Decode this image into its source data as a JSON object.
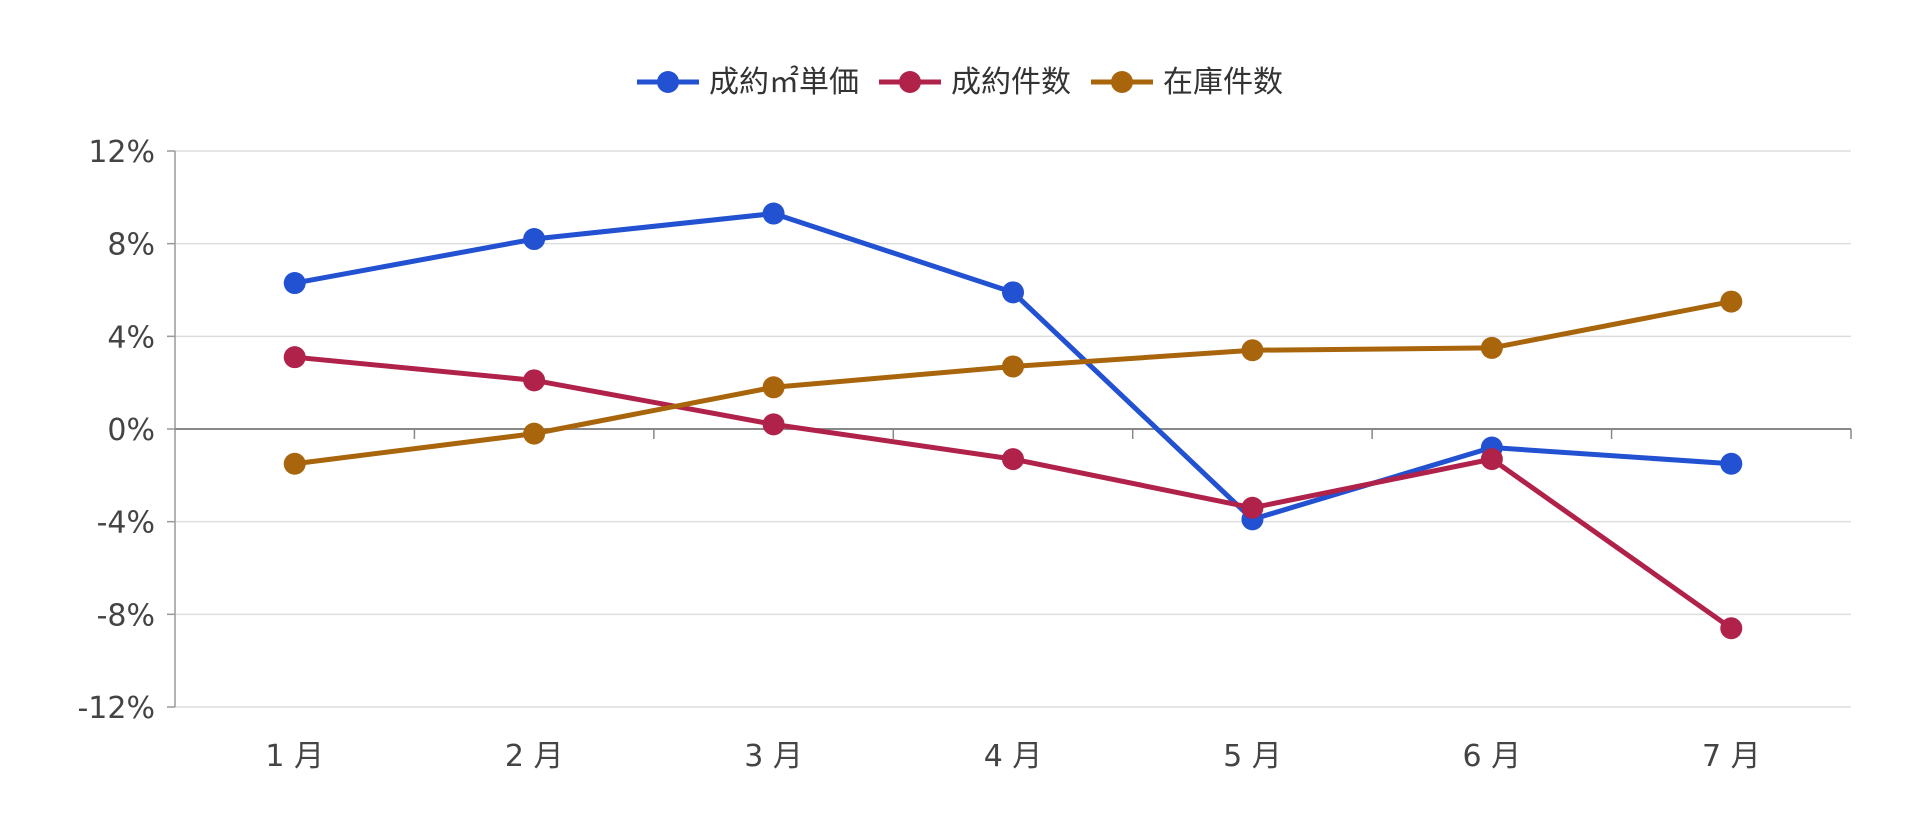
{
  "chart_data": {
    "type": "line",
    "categories": [
      "1 月",
      "2 月",
      "3 月",
      "4 月",
      "5 月",
      "6 月",
      "7 月"
    ],
    "y_ticks": [
      "12%",
      "8%",
      "4%",
      "0%",
      "-4%",
      "-8%",
      "-12%"
    ],
    "ylim": [
      -12,
      12
    ],
    "y_unit": "%",
    "grid": true,
    "legend_position": "top-center",
    "series": [
      {
        "name": "成約㎡単価",
        "color": "#2251d1",
        "values": [
          6.3,
          8.2,
          9.3,
          5.9,
          -3.9,
          -0.8,
          -1.5
        ]
      },
      {
        "name": "成約件数",
        "color": "#b0224a",
        "values": [
          3.1,
          2.1,
          0.2,
          -1.3,
          -3.4,
          -1.3,
          -8.6
        ]
      },
      {
        "name": "在庫件数",
        "color": "#a8650c",
        "values": [
          -1.5,
          -0.2,
          1.8,
          2.7,
          3.4,
          3.5,
          5.5
        ]
      }
    ]
  }
}
